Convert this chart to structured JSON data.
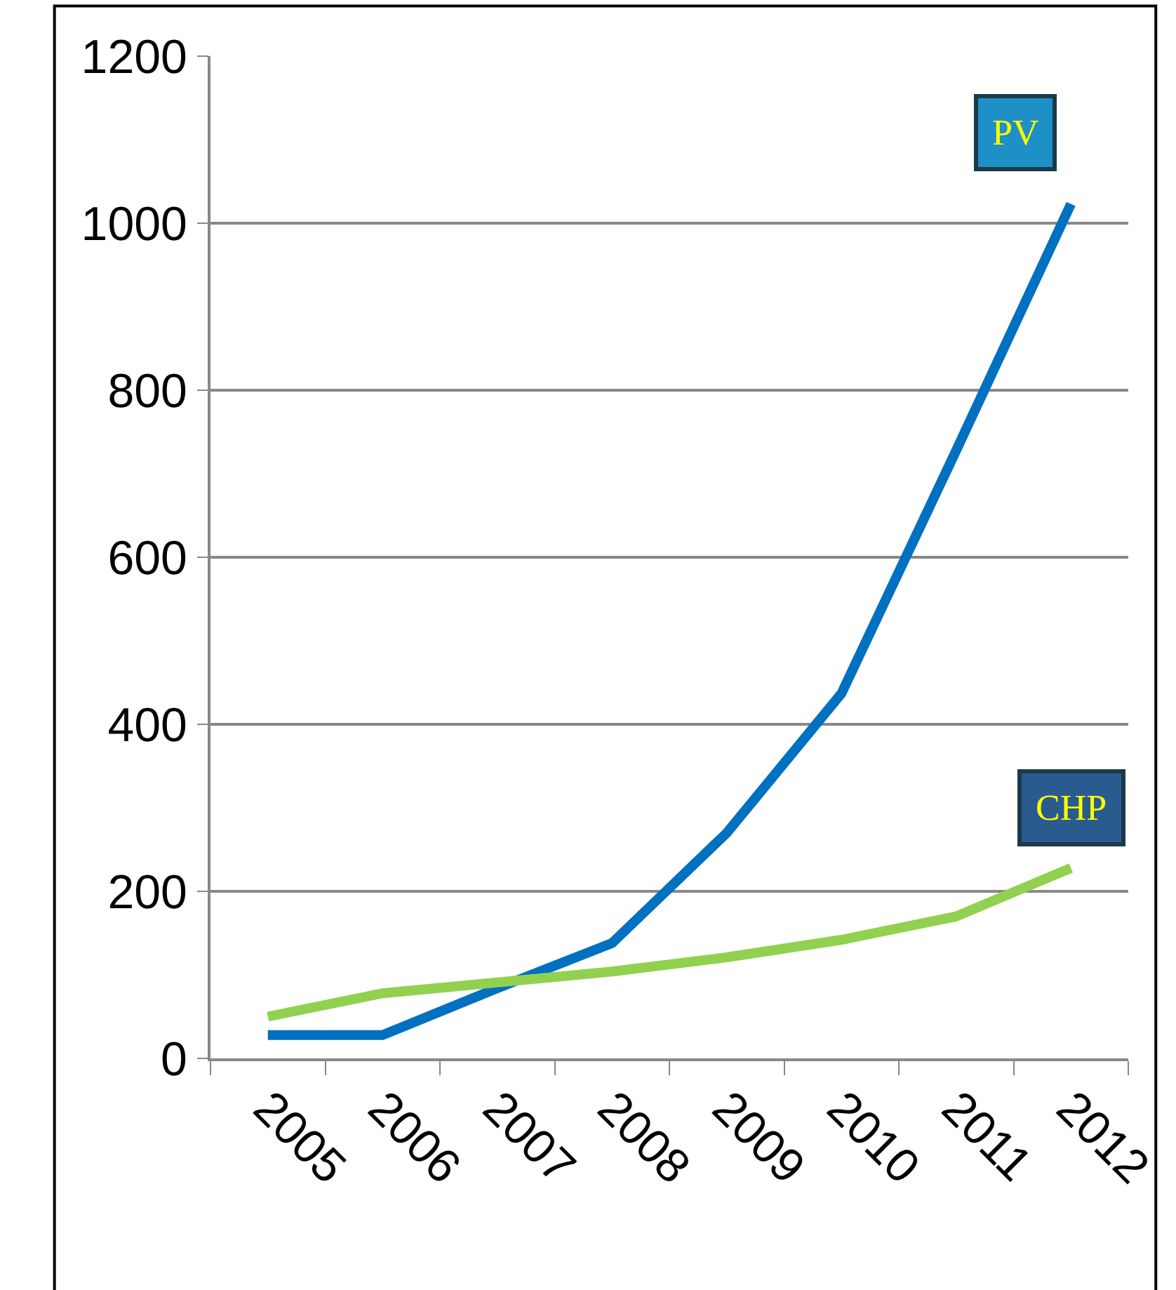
{
  "chart_data": {
    "type": "line",
    "categories": [
      "2005",
      "2006",
      "2007",
      "2008",
      "2009",
      "2010",
      "2011",
      "2012"
    ],
    "series": [
      {
        "name": "PV",
        "color": "#0070c0",
        "values": [
          28,
          28,
          84,
          138,
          270,
          437,
          728,
          1023
        ]
      },
      {
        "name": "CHP",
        "color": "#92d050",
        "values": [
          50,
          78,
          91,
          104,
          121,
          142,
          170,
          228
        ]
      }
    ],
    "ylim": [
      0,
      1200
    ],
    "yticks": [
      0,
      200,
      400,
      600,
      800,
      1000,
      1200
    ],
    "grid": "y",
    "legend": false,
    "marker": "none",
    "line_style": "solid"
  }
}
